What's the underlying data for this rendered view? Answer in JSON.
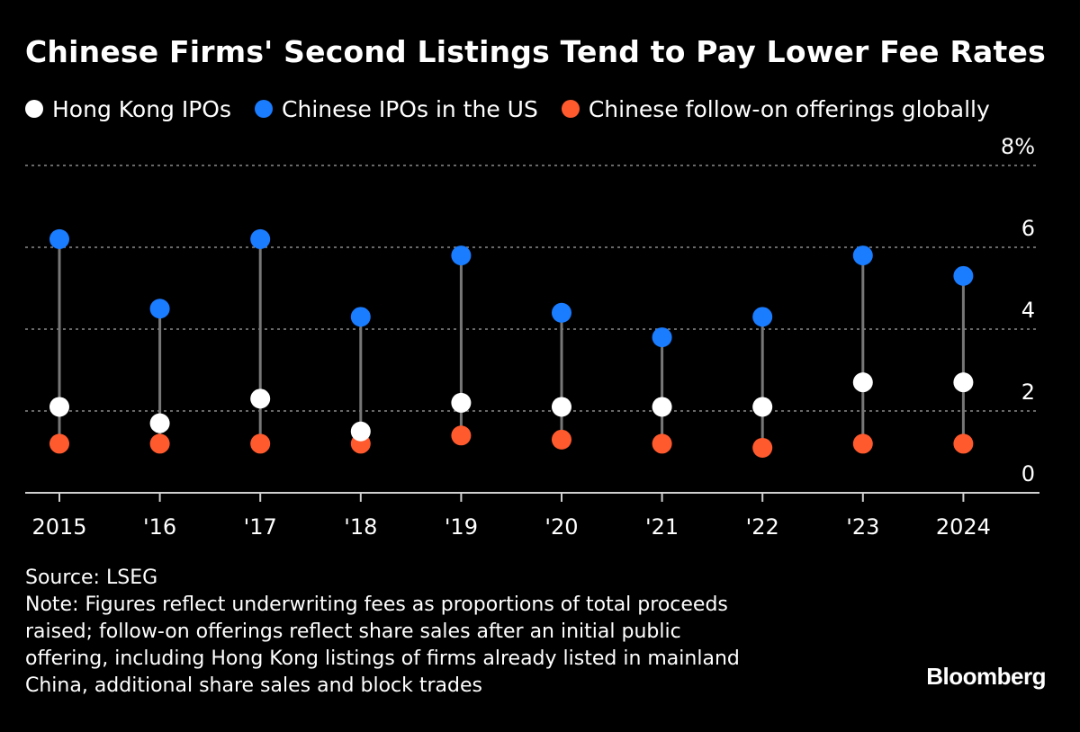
{
  "title": "Chinese Firms' Second Listings Tend to Pay Lower Fee Rates",
  "legend": [
    {
      "label": "Hong Kong IPOs",
      "color": "#ffffff"
    },
    {
      "label": "Chinese IPOs in the US",
      "color": "#1a7cff"
    },
    {
      "label": "Chinese follow-on offerings globally",
      "color": "#ff5a2e"
    }
  ],
  "chart_data": {
    "type": "scatter",
    "subtype": "dot-plot",
    "categories": [
      "2015",
      "'16",
      "'17",
      "'18",
      "'19",
      "'20",
      "'21",
      "'22",
      "'23",
      "2024"
    ],
    "series": [
      {
        "name": "Hong Kong IPOs",
        "color": "#ffffff",
        "values": [
          2.1,
          1.7,
          2.3,
          1.5,
          2.2,
          2.1,
          2.1,
          2.1,
          2.7,
          2.7
        ]
      },
      {
        "name": "Chinese IPOs in the US",
        "color": "#1a7cff",
        "values": [
          6.2,
          4.5,
          6.2,
          4.3,
          5.8,
          4.4,
          3.8,
          4.3,
          5.8,
          5.3
        ]
      },
      {
        "name": "Chinese follow-on offerings globally",
        "color": "#ff5a2e",
        "values": [
          1.2,
          1.2,
          1.2,
          1.2,
          1.4,
          1.3,
          1.2,
          1.1,
          1.2,
          1.2
        ]
      }
    ],
    "ylim": [
      0,
      8
    ],
    "yticks": [
      0,
      2,
      4,
      6,
      8
    ],
    "ytick_labels": [
      "0",
      "2",
      "4",
      "6",
      "8%"
    ],
    "y_axis_side": "right",
    "grid": "dotted horizontal",
    "legend_position": "top"
  },
  "footer": {
    "source": "Source: LSEG",
    "note_lines": [
      "Note: Figures reflect underwriting fees as proportions of total proceeds",
      "raised; follow-on offerings reflect share sales after an initial public",
      "offering, including Hong Kong listings of firms already listed in mainland",
      "China, additional share sales and block trades"
    ]
  },
  "brand": "Bloomberg"
}
